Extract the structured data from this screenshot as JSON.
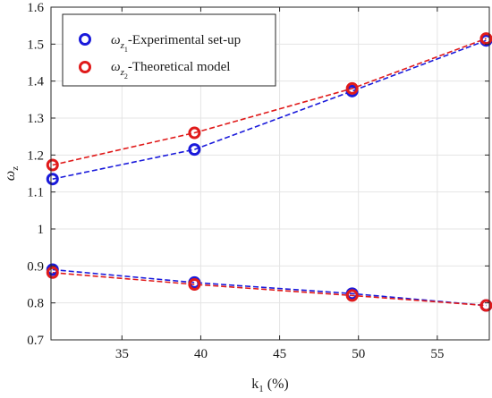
{
  "chart_data": {
    "type": "line",
    "xlabel": {
      "base": "k",
      "sub": "1",
      "rest": " (%)"
    },
    "ylabel": {
      "base": "ω",
      "sub": "z"
    },
    "xlim": [
      30.5,
      58.3
    ],
    "ylim": [
      0.7,
      1.6
    ],
    "xticks": [
      35,
      40,
      45,
      50,
      55
    ],
    "yticks": [
      0.7,
      0.8,
      0.9,
      1.0,
      1.1,
      1.2,
      1.3,
      1.4,
      1.5,
      1.6
    ],
    "ytick_labels": [
      "0.7",
      "0.8",
      "0.9",
      "1",
      "1.1",
      "1.2",
      "1.3",
      "1.4",
      "1.5",
      "1.6"
    ],
    "grid": true,
    "legend_placement": "top-left",
    "x": [
      30.6,
      39.6,
      49.6,
      58.1
    ],
    "series": [
      {
        "name": "ωz1-Experimental set-up",
        "legend": {
          "sym": "ω",
          "sub": "z",
          "subsub": "1",
          "text": "-Experimental set-up"
        },
        "color": "#1a1adb",
        "upper": [
          1.135,
          1.215,
          1.373,
          1.51
        ],
        "lower": [
          0.89,
          0.855,
          0.825,
          0.793
        ]
      },
      {
        "name": "ωz2-Theoretical model",
        "legend": {
          "sym": "ω",
          "sub": "z",
          "subsub": "2",
          "text": "-Theoretical model"
        },
        "color": "#e01a1a",
        "upper": [
          1.173,
          1.26,
          1.38,
          1.515
        ],
        "lower": [
          0.882,
          0.85,
          0.82,
          0.793
        ]
      }
    ]
  }
}
